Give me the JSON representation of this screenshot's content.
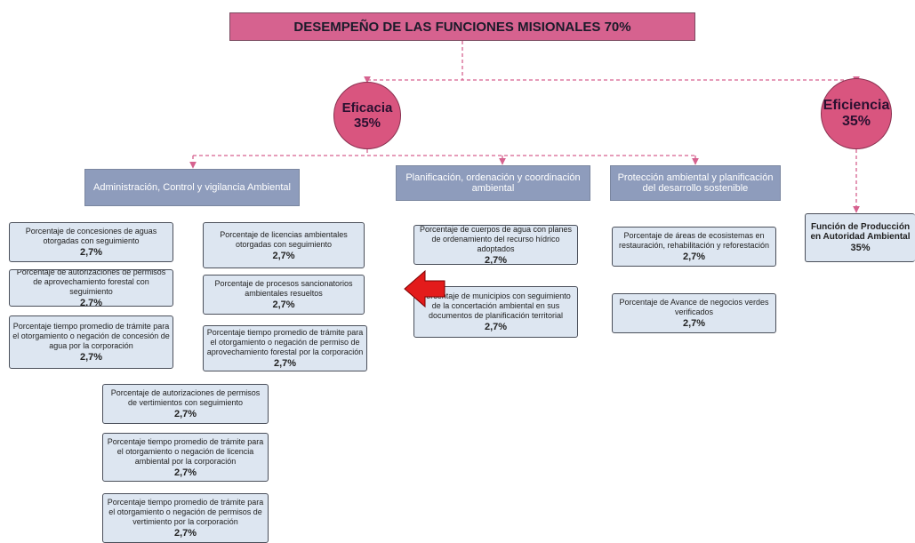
{
  "title": "DESEMPEÑO DE LAS FUNCIONES MISIONALES 70%",
  "branches": [
    {
      "label": "Eficacia",
      "value": "35%"
    },
    {
      "label": "Eficiencia",
      "value": "35%"
    }
  ],
  "categories": [
    "Administración, Control y vigilancia Ambiental",
    "Planificación, ordenación y coordinación ambiental",
    "Protección ambiental y planificación del desarrollo sostenible"
  ],
  "indicators": [
    {
      "label": "Porcentaje de concesiones de aguas otorgadas con seguimiento",
      "value": "2,7%"
    },
    {
      "label": "Porcentaje de autorizaciones de permisos de aprovechamiento forestal con seguimiento",
      "value": "2,7%"
    },
    {
      "label": "Porcentaje tiempo promedio de trámite para el otorgamiento o negación de concesión de agua por la corporación",
      "value": "2,7%"
    },
    {
      "label": "Porcentaje de licencias ambientales otorgadas con seguimiento",
      "value": "2,7%"
    },
    {
      "label": "Porcentaje de procesos sancionatorios ambientales resueltos",
      "value": "2,7%"
    },
    {
      "label": "Porcentaje tiempo promedio de trámite para el otorgamiento o negación de permiso de aprovechamiento forestal por la corporación",
      "value": "2,7%"
    },
    {
      "label": "Porcentaje de autorizaciones de permisos de vertimientos con seguimiento",
      "value": "2,7%"
    },
    {
      "label": "Porcentaje tiempo promedio de trámite para el otorgamiento o negación de licencia ambiental por la corporación",
      "value": "2,7%"
    },
    {
      "label": "Porcentaje tiempo promedio de trámite para el otorgamiento o negación de permisos de vertimiento por la corporación",
      "value": "2,7%"
    },
    {
      "label": "Porcentaje de cuerpos de agua con planes de ordenamiento del recurso hídrico adoptados",
      "value": "2,7%"
    },
    {
      "label": "Porcentaje de municipios con seguimiento de la concertación ambiental en sus documentos de planificación territorial",
      "value": "2,7%"
    },
    {
      "label": "Porcentaje de áreas de ecosistemas en restauración, rehabilitación y reforestación",
      "value": "2,7%"
    },
    {
      "label": "Porcentaje de Avance de negocios verdes verificados",
      "value": "2,7%"
    },
    {
      "label": "Función de Producción en Autoridad Ambiental",
      "value": "35%"
    }
  ]
}
